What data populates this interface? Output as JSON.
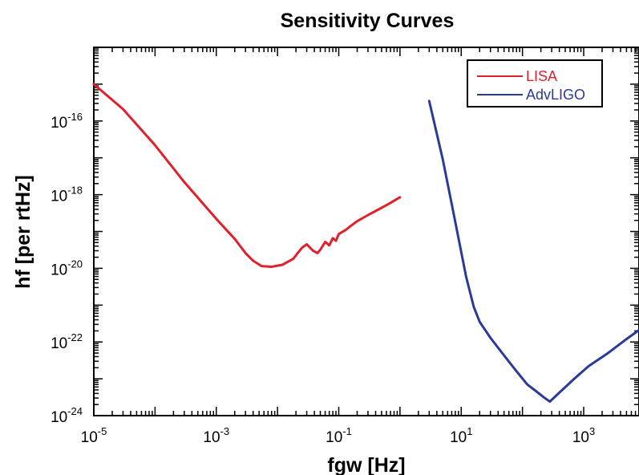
{
  "chart_data": {
    "type": "line",
    "title": "Sensitivity Curves",
    "xlabel": "fgw [Hz]",
    "ylabel": "hf [per rtHz]",
    "xscale": "log",
    "yscale": "log",
    "xlim": [
      1e-05,
      8000
    ],
    "ylim": [
      1e-24,
      1e-14
    ],
    "x_tick_labels": [
      {
        "value": 1e-05,
        "base": "10",
        "exp": "-5"
      },
      {
        "value": 0.001,
        "base": "10",
        "exp": "-3"
      },
      {
        "value": 0.1,
        "base": "10",
        "exp": "-1"
      },
      {
        "value": 10,
        "base": "10",
        "exp": "1"
      },
      {
        "value": 1000,
        "base": "10",
        "exp": "3"
      }
    ],
    "y_tick_labels": [
      {
        "value": 1e-16,
        "base": "10",
        "exp": "-16"
      },
      {
        "value": 1e-18,
        "base": "10",
        "exp": "-18"
      },
      {
        "value": 1e-20,
        "base": "10",
        "exp": "-20"
      },
      {
        "value": 1e-22,
        "base": "10",
        "exp": "-22"
      },
      {
        "value": 1e-24,
        "base": "10",
        "exp": "-24"
      }
    ],
    "grid": false,
    "legend_position": "top-right",
    "series": [
      {
        "name": "LISA",
        "color": "#e0202a",
        "x": [
          1e-05,
          3e-05,
          0.0001,
          0.0003,
          0.001,
          0.002,
          0.003,
          0.004,
          0.0055,
          0.008,
          0.012,
          0.018,
          0.025,
          0.03,
          0.038,
          0.045,
          0.05,
          0.06,
          0.07,
          0.08,
          0.09,
          0.1,
          0.13,
          0.16,
          0.2,
          0.3,
          0.5,
          0.7,
          1.0
        ],
        "y": [
          1e-15,
          2.1e-16,
          2.2e-17,
          2.2e-18,
          2.2e-19,
          6.3e-20,
          2.6e-20,
          1.6e-20,
          1.15e-20,
          1.1e-20,
          1.25e-20,
          1.8e-20,
          3.6e-20,
          4.5e-20,
          3e-20,
          2.6e-20,
          3.2e-20,
          5.2e-20,
          4.2e-20,
          6.6e-20,
          5.6e-20,
          8.5e-20,
          1.1e-19,
          1.45e-19,
          1.9e-19,
          2.8e-19,
          4.4e-19,
          6e-19,
          8.5e-19
        ]
      },
      {
        "name": "AdvLIGO",
        "color": "#2a3a9a",
        "x": [
          3,
          5,
          8,
          12,
          16,
          20,
          30,
          50,
          80,
          120,
          170,
          220,
          280,
          400,
          700,
          1200,
          2500,
          5000,
          8000
        ],
        "y": [
          3.5e-16,
          9e-18,
          1.8e-19,
          6e-21,
          9e-22,
          3.5e-22,
          1.3e-22,
          4.3e-23,
          1.6e-23,
          7e-24,
          4.5e-24,
          3.2e-24,
          2.4e-24,
          4.2e-24,
          1e-23,
          2.2e-23,
          5e-23,
          1.2e-22,
          2.1e-22
        ]
      }
    ]
  }
}
